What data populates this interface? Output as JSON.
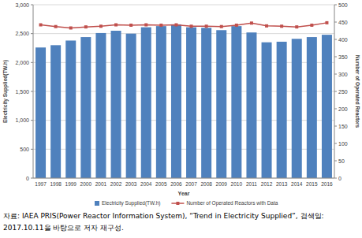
{
  "chart_data": {
    "type": "bar",
    "x_label": "Year",
    "y_label": "Electricity Supplied(TW.h)",
    "y2_label": "Number of Operated Reactors",
    "categories": [
      "1997",
      "1998",
      "1999",
      "2000",
      "2001",
      "2002",
      "2003",
      "2004",
      "2005",
      "2006",
      "2007",
      "2008",
      "2009",
      "2010",
      "2011",
      "2012",
      "2013",
      "2014",
      "2015",
      "2016"
    ],
    "series": [
      {
        "name": "Electricity Supplied(TW.h)",
        "type": "bar",
        "color": "#4f81bd",
        "values": [
          2260,
          2300,
          2380,
          2440,
          2510,
          2550,
          2500,
          2610,
          2630,
          2660,
          2610,
          2600,
          2560,
          2630,
          2520,
          2350,
          2360,
          2410,
          2440,
          2480
        ]
      },
      {
        "name": "Number of Operated Reactors with Data",
        "type": "line",
        "axis": "y2",
        "color": "#c0504d",
        "marker": "square",
        "values": [
          442,
          437,
          433,
          436,
          438,
          442,
          441,
          442,
          441,
          442,
          438,
          438,
          437,
          441,
          447,
          439,
          438,
          436,
          441,
          448
        ]
      }
    ],
    "ylim": [
      0,
      3000
    ],
    "yticks": [
      0,
      {
        "value": 500,
        "label": "500"
      },
      {
        "value": 1000,
        "label": "1,000"
      },
      {
        "value": 1500,
        "label": "1,500"
      },
      {
        "value": 2000,
        "label": "2,000"
      },
      {
        "value": 2500,
        "label": "2,500"
      },
      {
        "value": 3000,
        "label": "3,000"
      }
    ],
    "y2lim": [
      0,
      500
    ],
    "y2ticks": [
      0,
      50,
      100,
      150,
      200,
      250,
      300,
      350,
      400,
      450,
      500
    ],
    "grid": true,
    "legend": "bottom",
    "source": [
      "자료: IAEA PRIS(Power Reactor Information System), “Trend in Electricity Supplied”, 검색일:",
      "2017.10.11을 바탕으로 저자 재구성."
    ]
  }
}
